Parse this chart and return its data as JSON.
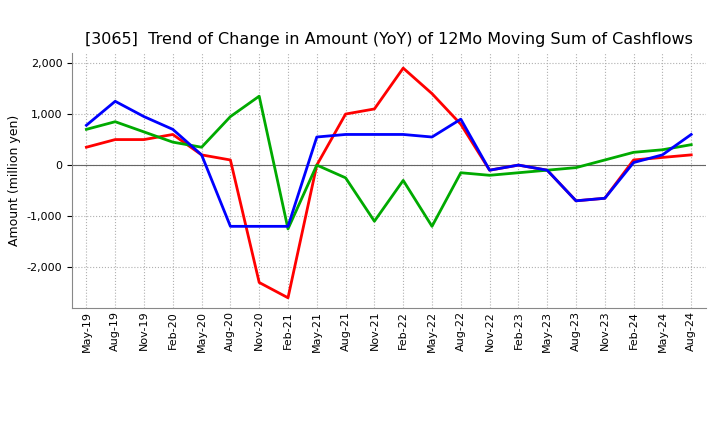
{
  "title": "[3065]  Trend of Change in Amount (YoY) of 12Mo Moving Sum of Cashflows",
  "ylabel": "Amount (million yen)",
  "x_labels": [
    "May-19",
    "Aug-19",
    "Nov-19",
    "Feb-20",
    "May-20",
    "Aug-20",
    "Nov-20",
    "Feb-21",
    "May-21",
    "Aug-21",
    "Nov-21",
    "Feb-22",
    "May-22",
    "Aug-22",
    "Nov-22",
    "Feb-23",
    "May-23",
    "Aug-23",
    "Nov-23",
    "Feb-24",
    "May-24",
    "Aug-24"
  ],
  "operating": [
    350,
    500,
    500,
    600,
    200,
    100,
    -2300,
    -2600,
    0,
    1000,
    1100,
    1900,
    1400,
    800,
    -100,
    0,
    -100,
    -700,
    -650,
    100,
    150,
    200
  ],
  "investing": [
    700,
    850,
    650,
    450,
    350,
    950,
    1350,
    -1250,
    0,
    -250,
    -1100,
    -300,
    -1200,
    -150,
    -200,
    -150,
    -100,
    -50,
    100,
    250,
    300,
    400
  ],
  "free": [
    780,
    1250,
    950,
    700,
    200,
    -1200,
    -1200,
    -1200,
    550,
    600,
    600,
    600,
    550,
    900,
    -100,
    0,
    -100,
    -700,
    -650,
    50,
    200,
    600
  ],
  "operating_color": "#ff0000",
  "investing_color": "#00aa00",
  "free_color": "#0000ff",
  "ylim": [
    -2800,
    2200
  ],
  "yticks": [
    -2000,
    -1000,
    0,
    1000,
    2000
  ],
  "grid_color": "#b0b0b0",
  "bg_color": "#ffffff",
  "title_fontsize": 11.5,
  "label_fontsize": 9,
  "tick_fontsize": 8,
  "legend_fontsize": 9.5,
  "linewidth": 2.0
}
